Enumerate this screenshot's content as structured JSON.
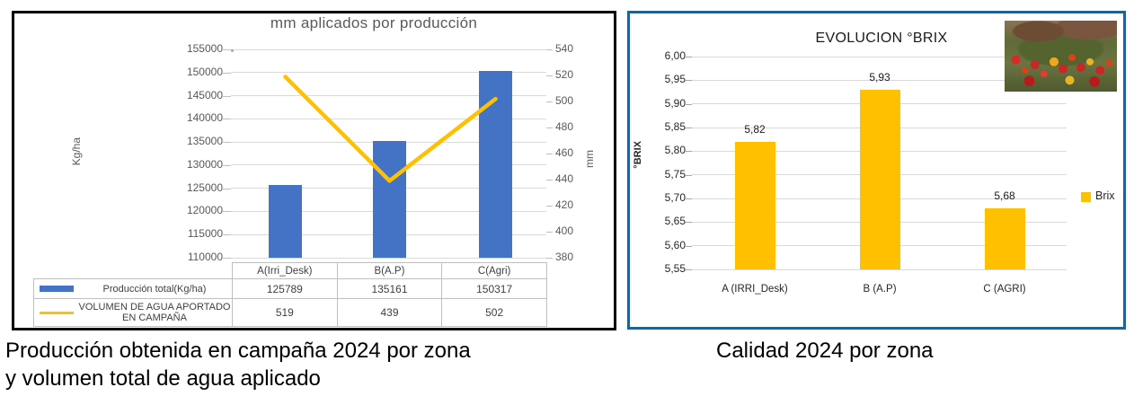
{
  "captions": {
    "left": "Producción obtenida en campaña 2024 por zona\n y volumen total de agua aplicado",
    "right": "Calidad 2024 por zona"
  },
  "colors": {
    "bar_blue": "#4472C4",
    "gold": "#FFC000",
    "left_box_border": "#000000",
    "right_box_border": "#1F6391",
    "gridline": "#D9D9D9",
    "axis_text": "#595959",
    "table_border": "#BFBFBF"
  },
  "chart_data": [
    {
      "type": "bar",
      "subtype": "bar+line combo with data table",
      "title": "mm aplicados por producción",
      "ylabel_left": "Kg/ha",
      "ylabel_right": "mm",
      "categories": [
        "A(Irri_Desk)",
        "B(A.P)",
        "C(Agri)"
      ],
      "series": [
        {
          "name": "Producción total(Kg/ha)",
          "type": "bar",
          "axis": "left",
          "color": "#4472C4",
          "values": [
            125789,
            135161,
            150317
          ]
        },
        {
          "name": "VOLUMEN DE AGUA APORTADO EN CAMPAÑA",
          "type": "line",
          "axis": "right",
          "color": "#FFC000",
          "values": [
            519,
            439,
            502
          ]
        }
      ],
      "y_left": {
        "min": 110000,
        "max": 155000,
        "tick_labels": [
          "155000",
          "150000",
          "145000",
          "140000",
          "135000",
          "130000",
          "125000",
          "120000",
          "115000",
          "110000"
        ]
      },
      "y_right": {
        "min": 380,
        "max": 540,
        "tick_labels": [
          "540",
          "520",
          "500",
          "480",
          "460",
          "440",
          "420",
          "400",
          "380"
        ]
      },
      "grid": true,
      "legend_position": "table-left"
    },
    {
      "type": "bar",
      "title": "EVOLUCION °BRIX",
      "ylabel": "°BRIX",
      "categories": [
        "A (IRRI_Desk)",
        "B (A.P)",
        "C (AGRI)"
      ],
      "series": [
        {
          "name": "Brix",
          "color": "#FFC000",
          "values": [
            5.82,
            5.93,
            5.68
          ],
          "value_labels": [
            "5,82",
            "5,93",
            "5,68"
          ]
        }
      ],
      "y_axis": {
        "min": 5.55,
        "max": 6.0,
        "tick_labels": [
          "6,00",
          "5,95",
          "5,90",
          "5,85",
          "5,80",
          "5,75",
          "5,70",
          "5,65",
          "5,60",
          "5,55"
        ]
      },
      "grid": true,
      "legend": {
        "label": "Brix",
        "position": "right"
      }
    }
  ]
}
